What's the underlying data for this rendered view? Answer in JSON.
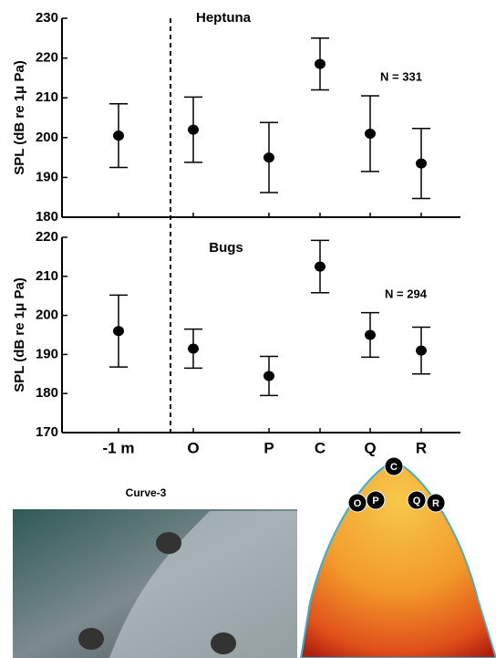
{
  "chart_data": [
    {
      "type": "errorbar",
      "title": "Heptuna",
      "annotation": "N = 331",
      "y_label": "SPL (dB re 1μ Pa)",
      "categories": [
        null,
        null,
        null,
        null,
        null,
        null
      ],
      "values": [
        200.5,
        202,
        195,
        218.5,
        201,
        193.5
      ],
      "errors": [
        8,
        8.2,
        8.8,
        6.5,
        9.5,
        8.8
      ],
      "color": "#000000",
      "ylim": [
        180,
        230
      ],
      "yticks": [
        180,
        190,
        200,
        210,
        220,
        230
      ]
    },
    {
      "type": "errorbar",
      "title": "Bugs",
      "annotation": "N = 294",
      "y_label": "SPL (dB re 1μ Pa)",
      "categories": [
        "-1 m",
        "O",
        "P",
        "C",
        "Q",
        "R"
      ],
      "values": [
        196,
        191.5,
        184.5,
        212.5,
        195,
        191
      ],
      "errors": [
        9.2,
        5,
        5,
        6.7,
        5.7,
        6
      ],
      "color": "#000000",
      "ylim": [
        170,
        220
      ],
      "yticks": [
        170,
        180,
        190,
        200,
        210,
        220
      ]
    }
  ],
  "diagram": {
    "title": "Curve-3",
    "markers": [
      "O",
      "P",
      "C",
      "Q",
      "R"
    ]
  }
}
